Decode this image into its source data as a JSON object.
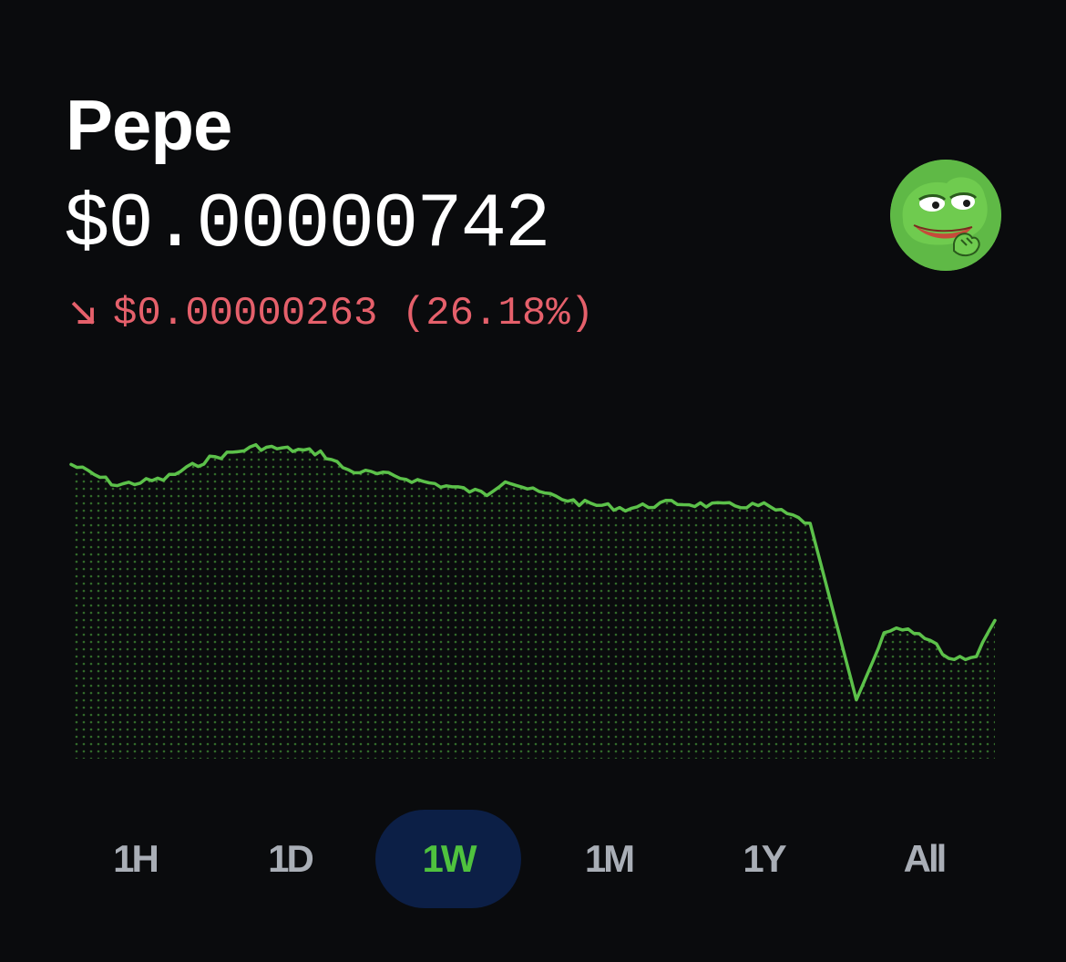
{
  "asset": {
    "name": "Pepe",
    "price": "$0.00000742",
    "change_arrow": "arrow-down-right-icon",
    "change_text": "$0.00000263 (26.18%)"
  },
  "colors": {
    "background": "#0a0b0d",
    "text": "#ffffff",
    "negative": "#e5606b",
    "chart_line": "#5cc14a",
    "range_inactive": "#a9aeb6",
    "range_active_text": "#4fc23e",
    "range_active_bg": "#0c1f46"
  },
  "avatar_icon": "pepe-frog-avatar-icon",
  "chart_data": {
    "type": "area",
    "title": "",
    "xlabel": "",
    "ylabel": "",
    "range": "1W",
    "x": [
      0,
      5,
      10,
      15,
      20,
      24,
      27,
      30,
      35,
      40,
      45,
      47,
      50,
      55,
      60,
      65,
      70,
      75,
      80,
      85,
      88,
      90,
      93,
      95,
      98,
      100
    ],
    "values": [
      1.0,
      0.93,
      0.95,
      1.02,
      1.06,
      1.05,
      1.04,
      0.98,
      0.96,
      0.93,
      0.9,
      0.95,
      0.91,
      0.87,
      0.85,
      0.87,
      0.86,
      0.86,
      0.8,
      0.2,
      0.42,
      0.44,
      0.4,
      0.34,
      0.35,
      0.47
    ],
    "grid": false,
    "legend": "none"
  },
  "ranges": [
    {
      "label": "1H",
      "active": false
    },
    {
      "label": "1D",
      "active": false
    },
    {
      "label": "1W",
      "active": true
    },
    {
      "label": "1M",
      "active": false
    },
    {
      "label": "1Y",
      "active": false
    },
    {
      "label": "All",
      "active": false
    }
  ]
}
